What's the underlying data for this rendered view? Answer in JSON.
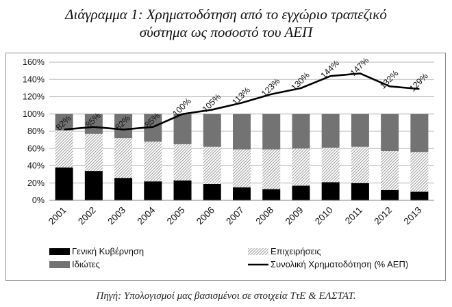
{
  "title_line1": "Διάγραμμα 1: Χρηματοδότηση από το εγχώριο τραπεζικό",
  "title_line2": "σύστημα ως ποσοστό  του ΑΕΠ",
  "source": "Πηγή: Υπολογισμοί μας βασισμένοι σε στοιχεία ΤτΕ & ΕΛΣΤΑΤ.",
  "colors": {
    "government": "#000000",
    "business": "#7f7f7f",
    "private": "#737373",
    "line": "#000000"
  },
  "chart_data": {
    "type": "bar",
    "stacked": true,
    "categories": [
      "2001",
      "2002",
      "2003",
      "2004",
      "2005",
      "2006",
      "2007",
      "2008",
      "2009",
      "2010",
      "2011",
      "2012",
      "2013"
    ],
    "series": [
      {
        "name": "Γενική Κυβέρνηση",
        "values": [
          38,
          34,
          26,
          22,
          23,
          19,
          15,
          13,
          17,
          21,
          20,
          12,
          10
        ]
      },
      {
        "name": "Επιχειρήσεις",
        "values": [
          43,
          43,
          46,
          46,
          42,
          43,
          44,
          46,
          43,
          40,
          42,
          45,
          46
        ]
      },
      {
        "name": "Ιδιώτες",
        "values": [
          19,
          23,
          28,
          32,
          35,
          38,
          41,
          41,
          40,
          39,
          38,
          43,
          44
        ]
      }
    ],
    "line_series": {
      "name": "Συνολική Χρηματοδότηση (% ΑΕΠ)",
      "values": [
        82,
        85,
        82,
        85,
        100,
        105,
        113,
        123,
        130,
        144,
        147,
        132,
        129
      ],
      "labels": [
        "82%",
        "85%",
        "82%",
        "85%",
        "100%",
        "105%",
        "113%",
        "123%",
        "130%",
        "144%",
        "147%",
        "132%",
        "129%"
      ]
    },
    "ylim": [
      0,
      160
    ],
    "yticks": [
      "0%",
      "20%",
      "40%",
      "60%",
      "80%",
      "100%",
      "120%",
      "140%",
      "160%"
    ],
    "grid": true,
    "legend": "bottom"
  }
}
